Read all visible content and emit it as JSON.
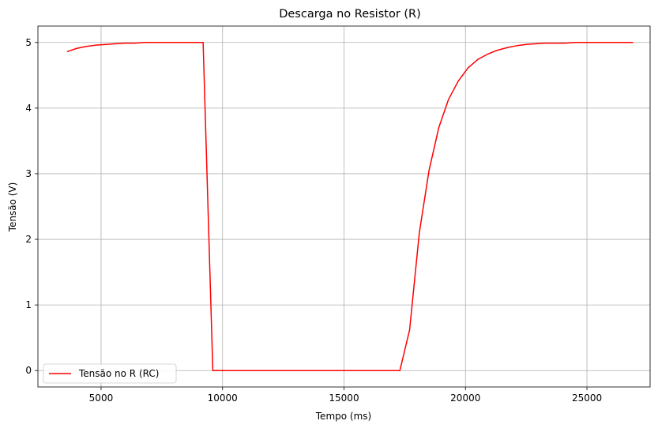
{
  "chart_data": {
    "type": "line",
    "title": "Descarga no Resistor (R)",
    "xlabel": "Tempo (ms)",
    "ylabel": "Tensão (V)",
    "xlim": [
      2400,
      27600
    ],
    "ylim": [
      -0.25,
      5.25
    ],
    "xticks": [
      5000,
      10000,
      15000,
      20000,
      25000
    ],
    "yticks": [
      0,
      1,
      2,
      3,
      4,
      5
    ],
    "grid": true,
    "legend": {
      "position": "bottom-left"
    },
    "series": [
      {
        "name": "Tensão no R (RC)",
        "color": "#ff0000",
        "x": [
          3600,
          4000,
          4400,
          4800,
          5200,
          5600,
          6000,
          6400,
          6800,
          7200,
          7600,
          8000,
          8400,
          8800,
          9200,
          9600,
          10000,
          11000,
          12000,
          13000,
          14000,
          15000,
          16000,
          17000,
          17300,
          17700,
          18100,
          18500,
          18900,
          19300,
          19700,
          20100,
          20500,
          20900,
          21300,
          21700,
          22100,
          22500,
          22900,
          23300,
          23700,
          24100,
          24500,
          24900,
          25300,
          25700,
          26100,
          26500,
          26900
        ],
        "y": [
          4.86,
          4.91,
          4.94,
          4.96,
          4.97,
          4.98,
          4.99,
          4.99,
          5.0,
          5.0,
          5.0,
          5.0,
          5.0,
          5.0,
          5.0,
          0.0,
          0.0,
          0.0,
          0.0,
          0.0,
          0.0,
          0.0,
          0.0,
          0.0,
          0.0,
          0.62,
          2.1,
          3.05,
          3.7,
          4.13,
          4.41,
          4.61,
          4.74,
          4.82,
          4.88,
          4.92,
          4.95,
          4.97,
          4.98,
          4.99,
          4.99,
          4.99,
          5.0,
          5.0,
          5.0,
          5.0,
          5.0,
          5.0,
          5.0
        ]
      }
    ]
  }
}
